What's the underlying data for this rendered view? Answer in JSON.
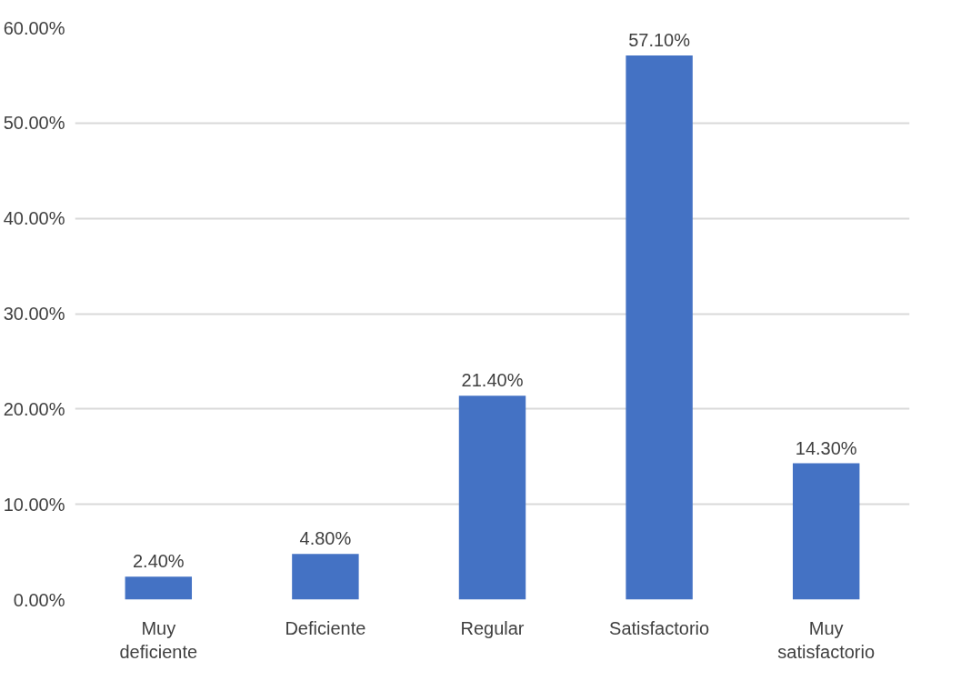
{
  "chart_data": {
    "type": "bar",
    "categories": [
      "Muy deficiente",
      "Deficiente",
      "Regular",
      "Satisfactorio",
      "Muy satisfactorio"
    ],
    "values": [
      2.4,
      4.8,
      21.4,
      57.1,
      14.3
    ],
    "value_labels": [
      "2.40%",
      "4.80%",
      "21.40%",
      "57.10%",
      "14.30%"
    ],
    "color": "#4472c4",
    "ylim": [
      0,
      60
    ],
    "yticks": [
      {
        "value": 0,
        "label": "0.00%"
      },
      {
        "value": 10,
        "label": "10.00%"
      },
      {
        "value": 20,
        "label": "20.00%"
      },
      {
        "value": 30,
        "label": "30.00%"
      },
      {
        "value": 40,
        "label": "40.00%"
      },
      {
        "value": 50,
        "label": "50.00%"
      },
      {
        "value": 60,
        "label": "60.00%"
      }
    ],
    "grid": "y"
  }
}
